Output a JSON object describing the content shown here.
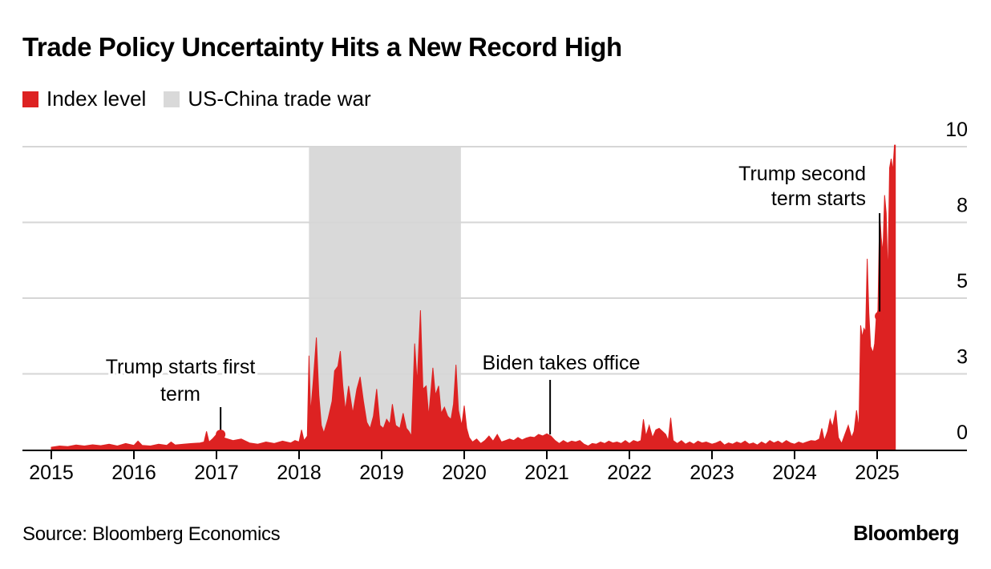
{
  "colors": {
    "index": "#dd2222",
    "shade": "#d9d9d9",
    "grid": "#d6d6d6",
    "axis": "#000000"
  },
  "legend": {
    "items": [
      {
        "label": "Index level",
        "color": "#dd2222"
      },
      {
        "label": "US-China trade war",
        "color": "#d9d9d9"
      }
    ]
  },
  "footer": {
    "source": "Source: Bloomberg Economics",
    "brand": "Bloomberg"
  },
  "chart_data": {
    "type": "area",
    "title": "Trade Policy Uncertainty Hits a New Record High",
    "xlabel": "",
    "ylabel": "",
    "xlim": [
      2014.65,
      2025.75
    ],
    "ylim": [
      0,
      10
    ],
    "x_ticks": [
      2015,
      2016,
      2017,
      2018,
      2019,
      2020,
      2021,
      2022,
      2023,
      2024,
      2025
    ],
    "x_tick_labels": [
      "2015",
      "2016",
      "2017",
      "2018",
      "2019",
      "2020",
      "2021",
      "2022",
      "2023",
      "2024",
      "2025"
    ],
    "y_ticks": [
      0,
      2.5,
      5,
      7.5,
      10
    ],
    "y_tick_labels": [
      "0",
      "3",
      "5",
      "8",
      "10"
    ],
    "grid": true,
    "legend_position": "top-left",
    "y_axis_side": "right",
    "shaded_regions": [
      {
        "name": "US-China trade war",
        "x_start": 2018.12,
        "x_end": 2019.96
      }
    ],
    "annotations": [
      {
        "text_lines": [
          "Trump starts first",
          "term"
        ],
        "x": 2017.05,
        "y": 0.4,
        "align": "center"
      },
      {
        "text_lines": [
          "Biden takes office"
        ],
        "x": 2021.05,
        "y": 0.4,
        "align": "center"
      },
      {
        "text_lines": [
          "Trump second",
          "term starts"
        ],
        "x": 2025.05,
        "y": 4.4,
        "align": "right"
      }
    ],
    "series": [
      {
        "name": "Index level",
        "points": [
          [
            2015.0,
            0.08
          ],
          [
            2015.1,
            0.12
          ],
          [
            2015.2,
            0.1
          ],
          [
            2015.3,
            0.15
          ],
          [
            2015.4,
            0.12
          ],
          [
            2015.5,
            0.16
          ],
          [
            2015.6,
            0.13
          ],
          [
            2015.7,
            0.18
          ],
          [
            2015.8,
            0.12
          ],
          [
            2015.9,
            0.2
          ],
          [
            2016.0,
            0.14
          ],
          [
            2016.05,
            0.28
          ],
          [
            2016.1,
            0.14
          ],
          [
            2016.2,
            0.12
          ],
          [
            2016.3,
            0.18
          ],
          [
            2016.4,
            0.14
          ],
          [
            2016.45,
            0.25
          ],
          [
            2016.5,
            0.15
          ],
          [
            2016.6,
            0.18
          ],
          [
            2016.7,
            0.2
          ],
          [
            2016.8,
            0.22
          ],
          [
            2016.85,
            0.25
          ],
          [
            2016.88,
            0.6
          ],
          [
            2016.91,
            0.25
          ],
          [
            2016.95,
            0.35
          ],
          [
            2017.0,
            0.5
          ],
          [
            2017.05,
            0.45
          ],
          [
            2017.1,
            0.38
          ],
          [
            2017.2,
            0.3
          ],
          [
            2017.3,
            0.35
          ],
          [
            2017.4,
            0.22
          ],
          [
            2017.5,
            0.18
          ],
          [
            2017.6,
            0.25
          ],
          [
            2017.7,
            0.2
          ],
          [
            2017.8,
            0.28
          ],
          [
            2017.9,
            0.22
          ],
          [
            2017.95,
            0.3
          ],
          [
            2018.0,
            0.25
          ],
          [
            2018.03,
            0.65
          ],
          [
            2018.06,
            0.3
          ],
          [
            2018.1,
            0.45
          ],
          [
            2018.12,
            3.1
          ],
          [
            2018.14,
            1.2
          ],
          [
            2018.17,
            2.2
          ],
          [
            2018.21,
            3.7
          ],
          [
            2018.24,
            1.8
          ],
          [
            2018.27,
            0.8
          ],
          [
            2018.3,
            0.55
          ],
          [
            2018.35,
            1.0
          ],
          [
            2018.4,
            1.6
          ],
          [
            2018.43,
            2.6
          ],
          [
            2018.47,
            2.75
          ],
          [
            2018.5,
            3.25
          ],
          [
            2018.53,
            2.1
          ],
          [
            2018.56,
            1.3
          ],
          [
            2018.6,
            2.1
          ],
          [
            2018.65,
            1.2
          ],
          [
            2018.7,
            2.0
          ],
          [
            2018.74,
            2.4
          ],
          [
            2018.78,
            1.6
          ],
          [
            2018.82,
            0.9
          ],
          [
            2018.86,
            0.7
          ],
          [
            2018.9,
            1.1
          ],
          [
            2018.94,
            2.0
          ],
          [
            2018.98,
            0.8
          ],
          [
            2019.02,
            0.7
          ],
          [
            2019.06,
            1.0
          ],
          [
            2019.1,
            0.85
          ],
          [
            2019.13,
            1.5
          ],
          [
            2019.17,
            0.8
          ],
          [
            2019.22,
            0.7
          ],
          [
            2019.26,
            1.2
          ],
          [
            2019.3,
            0.7
          ],
          [
            2019.33,
            0.6
          ],
          [
            2019.36,
            0.45
          ],
          [
            2019.4,
            3.5
          ],
          [
            2019.43,
            2.2
          ],
          [
            2019.47,
            4.6
          ],
          [
            2019.5,
            2.0
          ],
          [
            2019.54,
            2.1
          ],
          [
            2019.57,
            1.1
          ],
          [
            2019.62,
            2.7
          ],
          [
            2019.65,
            1.8
          ],
          [
            2019.69,
            2.1
          ],
          [
            2019.72,
            1.2
          ],
          [
            2019.76,
            1.4
          ],
          [
            2019.8,
            1.1
          ],
          [
            2019.84,
            1.0
          ],
          [
            2019.87,
            1.5
          ],
          [
            2019.9,
            2.8
          ],
          [
            2019.93,
            1.3
          ],
          [
            2019.97,
            0.8
          ],
          [
            2020.0,
            1.45
          ],
          [
            2020.03,
            0.7
          ],
          [
            2020.06,
            0.4
          ],
          [
            2020.1,
            0.25
          ],
          [
            2020.15,
            0.35
          ],
          [
            2020.2,
            0.2
          ],
          [
            2020.25,
            0.3
          ],
          [
            2020.3,
            0.45
          ],
          [
            2020.35,
            0.28
          ],
          [
            2020.4,
            0.5
          ],
          [
            2020.45,
            0.25
          ],
          [
            2020.5,
            0.3
          ],
          [
            2020.55,
            0.35
          ],
          [
            2020.6,
            0.3
          ],
          [
            2020.65,
            0.4
          ],
          [
            2020.7,
            0.32
          ],
          [
            2020.75,
            0.38
          ],
          [
            2020.8,
            0.42
          ],
          [
            2020.85,
            0.4
          ],
          [
            2020.9,
            0.5
          ],
          [
            2020.95,
            0.45
          ],
          [
            2021.0,
            0.52
          ],
          [
            2021.05,
            0.45
          ],
          [
            2021.1,
            0.3
          ],
          [
            2021.15,
            0.2
          ],
          [
            2021.2,
            0.3
          ],
          [
            2021.25,
            0.22
          ],
          [
            2021.3,
            0.28
          ],
          [
            2021.35,
            0.25
          ],
          [
            2021.4,
            0.3
          ],
          [
            2021.45,
            0.18
          ],
          [
            2021.5,
            0.12
          ],
          [
            2021.55,
            0.2
          ],
          [
            2021.6,
            0.18
          ],
          [
            2021.65,
            0.25
          ],
          [
            2021.7,
            0.2
          ],
          [
            2021.75,
            0.28
          ],
          [
            2021.8,
            0.22
          ],
          [
            2021.85,
            0.25
          ],
          [
            2021.9,
            0.2
          ],
          [
            2021.95,
            0.3
          ],
          [
            2022.0,
            0.2
          ],
          [
            2022.05,
            0.3
          ],
          [
            2022.1,
            0.25
          ],
          [
            2022.14,
            0.3
          ],
          [
            2022.17,
            1.0
          ],
          [
            2022.2,
            0.45
          ],
          [
            2022.24,
            0.8
          ],
          [
            2022.28,
            0.4
          ],
          [
            2022.32,
            0.65
          ],
          [
            2022.36,
            0.7
          ],
          [
            2022.4,
            0.6
          ],
          [
            2022.44,
            0.5
          ],
          [
            2022.47,
            0.3
          ],
          [
            2022.5,
            1.05
          ],
          [
            2022.53,
            0.3
          ],
          [
            2022.58,
            0.2
          ],
          [
            2022.63,
            0.3
          ],
          [
            2022.68,
            0.18
          ],
          [
            2022.73,
            0.25
          ],
          [
            2022.78,
            0.18
          ],
          [
            2022.83,
            0.28
          ],
          [
            2022.88,
            0.22
          ],
          [
            2022.93,
            0.25
          ],
          [
            2023.0,
            0.18
          ],
          [
            2023.05,
            0.22
          ],
          [
            2023.1,
            0.28
          ],
          [
            2023.15,
            0.15
          ],
          [
            2023.2,
            0.22
          ],
          [
            2023.25,
            0.18
          ],
          [
            2023.3,
            0.25
          ],
          [
            2023.35,
            0.2
          ],
          [
            2023.4,
            0.28
          ],
          [
            2023.45,
            0.18
          ],
          [
            2023.5,
            0.22
          ],
          [
            2023.55,
            0.15
          ],
          [
            2023.6,
            0.25
          ],
          [
            2023.65,
            0.18
          ],
          [
            2023.7,
            0.3
          ],
          [
            2023.75,
            0.22
          ],
          [
            2023.8,
            0.28
          ],
          [
            2023.85,
            0.2
          ],
          [
            2023.9,
            0.3
          ],
          [
            2023.95,
            0.22
          ],
          [
            2024.0,
            0.18
          ],
          [
            2024.05,
            0.25
          ],
          [
            2024.1,
            0.2
          ],
          [
            2024.15,
            0.25
          ],
          [
            2024.2,
            0.3
          ],
          [
            2024.25,
            0.28
          ],
          [
            2024.3,
            0.35
          ],
          [
            2024.33,
            0.7
          ],
          [
            2024.36,
            0.3
          ],
          [
            2024.4,
            0.6
          ],
          [
            2024.43,
            1.0
          ],
          [
            2024.46,
            0.75
          ],
          [
            2024.5,
            1.3
          ],
          [
            2024.53,
            0.4
          ],
          [
            2024.57,
            0.2
          ],
          [
            2024.61,
            0.5
          ],
          [
            2024.65,
            0.8
          ],
          [
            2024.69,
            0.4
          ],
          [
            2024.72,
            0.6
          ],
          [
            2024.75,
            1.3
          ],
          [
            2024.78,
            0.7
          ],
          [
            2024.8,
            4.1
          ],
          [
            2024.82,
            3.7
          ],
          [
            2024.84,
            4.0
          ],
          [
            2024.86,
            3.9
          ],
          [
            2024.88,
            6.3
          ],
          [
            2024.9,
            4.5
          ],
          [
            2024.92,
            3.4
          ],
          [
            2024.95,
            3.2
          ],
          [
            2024.97,
            3.5
          ],
          [
            2024.99,
            4.4
          ],
          [
            2025.01,
            4.6
          ],
          [
            2025.03,
            7.8
          ],
          [
            2025.05,
            7.0
          ],
          [
            2025.07,
            6.5
          ],
          [
            2025.09,
            8.4
          ],
          [
            2025.11,
            7.8
          ],
          [
            2025.13,
            5.6
          ],
          [
            2025.15,
            9.3
          ],
          [
            2025.17,
            9.6
          ],
          [
            2025.19,
            9.2
          ],
          [
            2025.21,
            10.05
          ],
          [
            2025.22,
            10.05
          ]
        ]
      }
    ]
  }
}
